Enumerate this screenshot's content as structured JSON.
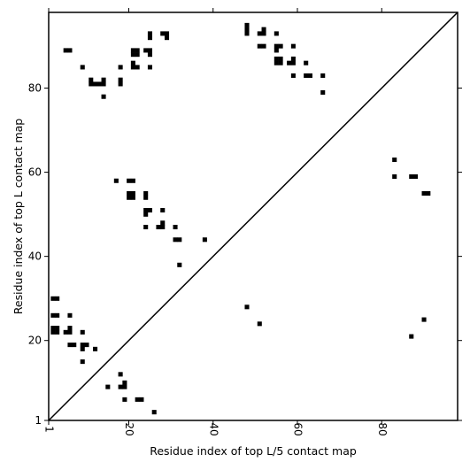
{
  "chart_data": {
    "type": "scatter",
    "title": "",
    "xlabel": "Residue index of top L/5 contact map",
    "ylabel": "Residue index of top L contact map",
    "xlim": [
      1,
      98
    ],
    "ylim": [
      1,
      98
    ],
    "xticks": [
      1,
      20,
      40,
      60,
      80
    ],
    "yticks": [
      1,
      20,
      40,
      60,
      80
    ],
    "grid": false,
    "marker": "square",
    "marker_color": "#000000",
    "diagonal_line": true,
    "upper_triangle_points": [
      {
        "x": 5,
        "y": 89
      },
      {
        "x": 6,
        "y": 89
      },
      {
        "x": 9,
        "y": 85
      },
      {
        "x": 11,
        "y": 82
      },
      {
        "x": 11,
        "y": 81
      },
      {
        "x": 12,
        "y": 81
      },
      {
        "x": 13,
        "y": 81
      },
      {
        "x": 14,
        "y": 82
      },
      {
        "x": 14,
        "y": 81
      },
      {
        "x": 14,
        "y": 78
      },
      {
        "x": 18,
        "y": 85
      },
      {
        "x": 18,
        "y": 82
      },
      {
        "x": 18,
        "y": 81
      },
      {
        "x": 21,
        "y": 89
      },
      {
        "x": 22,
        "y": 89
      },
      {
        "x": 21,
        "y": 88
      },
      {
        "x": 22,
        "y": 88
      },
      {
        "x": 21,
        "y": 86
      },
      {
        "x": 21,
        "y": 85
      },
      {
        "x": 22,
        "y": 85
      },
      {
        "x": 24,
        "y": 89
      },
      {
        "x": 25,
        "y": 89
      },
      {
        "x": 25,
        "y": 88
      },
      {
        "x": 25,
        "y": 93
      },
      {
        "x": 25,
        "y": 92
      },
      {
        "x": 25,
        "y": 85
      },
      {
        "x": 28,
        "y": 93
      },
      {
        "x": 29,
        "y": 93
      },
      {
        "x": 29,
        "y": 92
      },
      {
        "x": 17,
        "y": 58
      },
      {
        "x": 20,
        "y": 58
      },
      {
        "x": 21,
        "y": 58
      },
      {
        "x": 20,
        "y": 55
      },
      {
        "x": 21,
        "y": 55
      },
      {
        "x": 20,
        "y": 54
      },
      {
        "x": 21,
        "y": 54
      },
      {
        "x": 24,
        "y": 55
      },
      {
        "x": 24,
        "y": 54
      },
      {
        "x": 24,
        "y": 51
      },
      {
        "x": 25,
        "y": 51
      },
      {
        "x": 24,
        "y": 50
      },
      {
        "x": 28,
        "y": 51
      },
      {
        "x": 24,
        "y": 47
      },
      {
        "x": 27,
        "y": 47
      },
      {
        "x": 28,
        "y": 47
      },
      {
        "x": 28,
        "y": 48
      },
      {
        "x": 31,
        "y": 47
      },
      {
        "x": 31,
        "y": 44
      },
      {
        "x": 32,
        "y": 44
      },
      {
        "x": 38,
        "y": 44
      },
      {
        "x": 32,
        "y": 38
      },
      {
        "x": 48,
        "y": 95
      },
      {
        "x": 48,
        "y": 94
      },
      {
        "x": 48,
        "y": 93
      },
      {
        "x": 51,
        "y": 93
      },
      {
        "x": 52,
        "y": 93
      },
      {
        "x": 52,
        "y": 94
      },
      {
        "x": 55,
        "y": 93
      },
      {
        "x": 51,
        "y": 90
      },
      {
        "x": 52,
        "y": 90
      },
      {
        "x": 55,
        "y": 90
      },
      {
        "x": 56,
        "y": 90
      },
      {
        "x": 55,
        "y": 89
      },
      {
        "x": 59,
        "y": 90
      },
      {
        "x": 55,
        "y": 87
      },
      {
        "x": 56,
        "y": 87
      },
      {
        "x": 55,
        "y": 86
      },
      {
        "x": 56,
        "y": 86
      },
      {
        "x": 58,
        "y": 86
      },
      {
        "x": 59,
        "y": 86
      },
      {
        "x": 59,
        "y": 87
      },
      {
        "x": 62,
        "y": 86
      },
      {
        "x": 59,
        "y": 83
      },
      {
        "x": 62,
        "y": 83
      },
      {
        "x": 63,
        "y": 83
      },
      {
        "x": 66,
        "y": 83
      },
      {
        "x": 66,
        "y": 79
      }
    ],
    "lower_triangle_points": [
      {
        "x": 83,
        "y": 63
      },
      {
        "x": 83,
        "y": 59
      },
      {
        "x": 87,
        "y": 59
      },
      {
        "x": 88,
        "y": 59
      },
      {
        "x": 90,
        "y": 55
      },
      {
        "x": 91,
        "y": 55
      },
      {
        "x": 2,
        "y": 30
      },
      {
        "x": 3,
        "y": 30
      },
      {
        "x": 2,
        "y": 26
      },
      {
        "x": 3,
        "y": 26
      },
      {
        "x": 6,
        "y": 26
      },
      {
        "x": 2,
        "y": 23
      },
      {
        "x": 3,
        "y": 23
      },
      {
        "x": 2,
        "y": 22
      },
      {
        "x": 3,
        "y": 22
      },
      {
        "x": 5,
        "y": 22
      },
      {
        "x": 6,
        "y": 22
      },
      {
        "x": 6,
        "y": 23
      },
      {
        "x": 9,
        "y": 22
      },
      {
        "x": 6,
        "y": 19
      },
      {
        "x": 7,
        "y": 19
      },
      {
        "x": 9,
        "y": 19
      },
      {
        "x": 10,
        "y": 19
      },
      {
        "x": 9,
        "y": 18
      },
      {
        "x": 12,
        "y": 18
      },
      {
        "x": 9,
        "y": 15
      },
      {
        "x": 18,
        "y": 12
      },
      {
        "x": 15,
        "y": 9
      },
      {
        "x": 18,
        "y": 9
      },
      {
        "x": 19,
        "y": 9
      },
      {
        "x": 19,
        "y": 10
      },
      {
        "x": 19,
        "y": 6
      },
      {
        "x": 22,
        "y": 6
      },
      {
        "x": 23,
        "y": 6
      },
      {
        "x": 26,
        "y": 3
      },
      {
        "x": 48,
        "y": 28
      },
      {
        "x": 51,
        "y": 24
      },
      {
        "x": 90,
        "y": 25
      },
      {
        "x": 87,
        "y": 21
      }
    ]
  }
}
